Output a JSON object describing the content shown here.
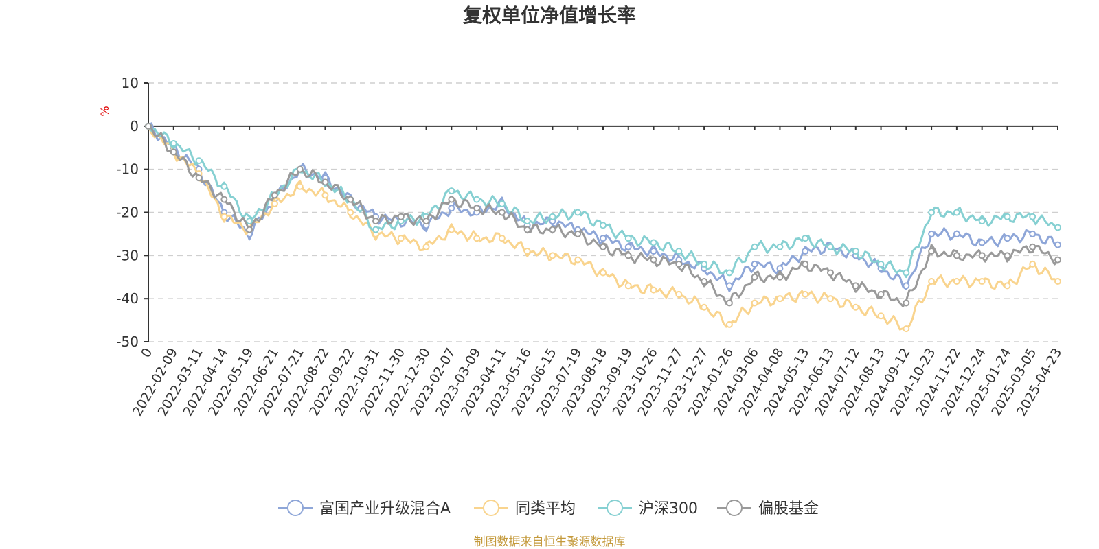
{
  "chart_data": {
    "type": "line",
    "title": "复权单位净值增长率",
    "ylabel": "%",
    "ylim": [
      -50,
      10
    ],
    "yticks": [
      10,
      0,
      -10,
      -20,
      -30,
      -40,
      -50
    ],
    "grid": true,
    "legend_position": "bottom",
    "x_tick_labels": [
      "0",
      "2022-02-09",
      "2022-03-11",
      "2022-04-14",
      "2022-05-19",
      "2022-06-21",
      "2022-07-21",
      "2022-08-22",
      "2022-09-22",
      "2022-10-31",
      "2022-11-30",
      "2022-12-30",
      "2023-02-07",
      "2023-03-09",
      "2023-04-11",
      "2023-05-16",
      "2023-06-15",
      "2023-07-19",
      "2023-08-18",
      "2023-09-19",
      "2023-10-26",
      "2023-11-27",
      "2023-12-27",
      "2024-01-26",
      "2024-03-06",
      "2024-04-08",
      "2024-05-13",
      "2024-06-13",
      "2024-07-12",
      "2024-08-13",
      "2024-09-12",
      "2024-10-23",
      "2024-11-22",
      "2024-12-24",
      "2025-01-24",
      "2025-03-05",
      "2025-04-23"
    ],
    "series": [
      {
        "name": "富国产业升级混合A",
        "color": "#8ea6d8",
        "values": [
          0,
          -5,
          -10,
          -20,
          -25,
          -17,
          -10,
          -12,
          -17,
          -21,
          -22,
          -23,
          -19,
          -20,
          -18,
          -23,
          -22,
          -24,
          -26,
          -28,
          -29,
          -31,
          -33,
          -37,
          -32,
          -33,
          -29,
          -28,
          -30,
          -33,
          -37,
          -25,
          -25,
          -27,
          -26,
          -25,
          -27.5
        ]
      },
      {
        "name": "同类平均",
        "color": "#f9d48e",
        "values": [
          0,
          -6,
          -11,
          -21,
          -24,
          -18,
          -14,
          -16,
          -20,
          -25,
          -26,
          -28,
          -24,
          -26,
          -26,
          -29,
          -30,
          -31,
          -34,
          -37,
          -38,
          -39,
          -42,
          -46,
          -41,
          -40,
          -39,
          -40,
          -42,
          -44,
          -47,
          -36,
          -36,
          -36,
          -37,
          -32,
          -36
        ]
      },
      {
        "name": "沪深300",
        "color": "#86d0d2",
        "values": [
          0,
          -4,
          -8,
          -14,
          -22,
          -16,
          -10,
          -13,
          -17,
          -24,
          -22,
          -21,
          -15,
          -17,
          -18,
          -22,
          -21,
          -20,
          -23,
          -26,
          -27,
          -29,
          -32,
          -34,
          -28,
          -28,
          -26,
          -28,
          -29,
          -32,
          -34,
          -20,
          -20,
          -22,
          -21,
          -21,
          -23.5
        ]
      },
      {
        "name": "偏股基金",
        "color": "#9a9a9a",
        "values": [
          0,
          -6,
          -12,
          -17,
          -24,
          -16,
          -10,
          -13,
          -17,
          -22,
          -21,
          -22,
          -17,
          -19,
          -20,
          -24,
          -24,
          -25,
          -28,
          -30,
          -31,
          -32,
          -36,
          -41,
          -35,
          -35,
          -32,
          -34,
          -37,
          -39,
          -41,
          -29,
          -30,
          -30,
          -30,
          -28,
          -31
        ]
      }
    ]
  },
  "source_note": "制图数据来自恒生聚源数据库"
}
